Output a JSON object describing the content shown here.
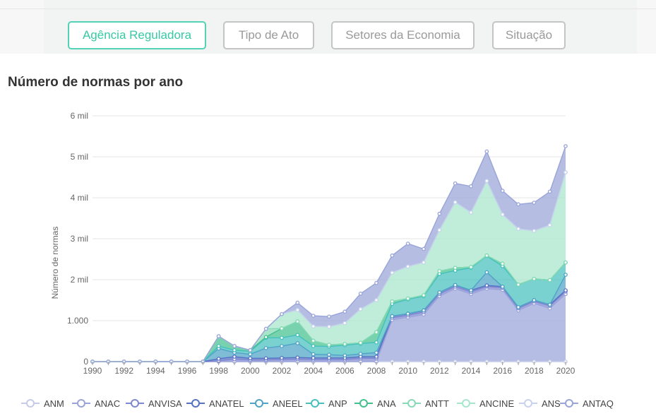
{
  "tabs": [
    {
      "label": "Agência Reguladora",
      "active": true
    },
    {
      "label": "Tipo de Ato",
      "active": false
    },
    {
      "label": "Setores da Economia",
      "active": false
    },
    {
      "label": "Situação",
      "active": false
    }
  ],
  "page_title": "Número de normas por ano",
  "chart_data": {
    "type": "area",
    "stacked": true,
    "title": "Número de normas por ano",
    "xlabel": "",
    "ylabel": "Número de normas",
    "x": [
      1990,
      1991,
      1992,
      1993,
      1994,
      1995,
      1996,
      1997,
      1998,
      1999,
      2000,
      2001,
      2002,
      2003,
      2004,
      2005,
      2006,
      2007,
      2008,
      2009,
      2010,
      2011,
      2012,
      2013,
      2014,
      2015,
      2016,
      2017,
      2018,
      2019,
      2020
    ],
    "x_tick_labels": [
      "1990",
      "1992",
      "1994",
      "1996",
      "1998",
      "2000",
      "2002",
      "2004",
      "2006",
      "2008",
      "2010",
      "2012",
      "2014",
      "2016",
      "2018",
      "2020"
    ],
    "ylim": [
      0,
      6000
    ],
    "y_ticks": [
      0,
      1000,
      2000,
      3000,
      4000,
      5000,
      6000
    ],
    "y_tick_labels": [
      "0",
      "1.000",
      "2 mil",
      "3 mil",
      "4 mil",
      "5 mil",
      "6 mil"
    ],
    "grid": true,
    "legend_position": "bottom",
    "series": [
      {
        "name": "ANM",
        "color": "#c5cbe9",
        "values": [
          0,
          0,
          0,
          0,
          0,
          0,
          0,
          0,
          0,
          0,
          0,
          0,
          0,
          0,
          0,
          0,
          0,
          0,
          0,
          0,
          0,
          0,
          0,
          0,
          0,
          0,
          0,
          0,
          0,
          0,
          0
        ]
      },
      {
        "name": "ANAC",
        "color": "#9aa4da",
        "values": [
          0,
          0,
          0,
          0,
          0,
          0,
          0,
          0,
          0,
          0,
          0,
          0,
          0,
          0,
          0,
          0,
          0,
          0,
          0,
          1020,
          1080,
          1150,
          1600,
          1780,
          1650,
          1780,
          1750,
          1250,
          1420,
          1300,
          1650
        ]
      },
      {
        "name": "ANVISA",
        "color": "#7f88d1",
        "values": [
          0,
          0,
          0,
          0,
          0,
          0,
          0,
          0,
          20,
          60,
          40,
          40,
          50,
          60,
          50,
          50,
          50,
          80,
          80,
          50,
          50,
          60,
          50,
          50,
          50,
          50,
          50,
          50,
          50,
          60,
          60
        ]
      },
      {
        "name": "ANATEL",
        "color": "#5572c3",
        "values": [
          0,
          0,
          0,
          0,
          0,
          0,
          0,
          0,
          50,
          60,
          40,
          40,
          40,
          40,
          40,
          40,
          40,
          40,
          40,
          40,
          40,
          40,
          40,
          40,
          40,
          30,
          30,
          30,
          30,
          30,
          30
        ]
      },
      {
        "name": "ANEEL",
        "color": "#4ea3c7",
        "values": [
          0,
          0,
          0,
          0,
          0,
          0,
          0,
          0,
          250,
          100,
          100,
          250,
          290,
          350,
          90,
          80,
          60,
          70,
          100,
          0,
          0,
          0,
          0,
          0,
          0,
          320,
          0,
          0,
          0,
          0,
          380
        ]
      },
      {
        "name": "ANP",
        "color": "#45c0bc",
        "values": [
          0,
          0,
          0,
          0,
          0,
          0,
          0,
          0,
          60,
          60,
          70,
          250,
          200,
          200,
          200,
          200,
          250,
          250,
          250,
          300,
          350,
          350,
          450,
          350,
          550,
          400,
          500,
          550,
          520,
          600,
          300
        ]
      },
      {
        "name": "ANA",
        "color": "#44c08e",
        "values": [
          0,
          0,
          0,
          0,
          0,
          0,
          0,
          0,
          240,
          100,
          30,
          20,
          230,
          330,
          130,
          40,
          30,
          20,
          250,
          60,
          20,
          20,
          70,
          70,
          20,
          10,
          60,
          0,
          0,
          0,
          0
        ]
      },
      {
        "name": "ANTT",
        "color": "#86dab5",
        "values": [
          0,
          0,
          0,
          0,
          0,
          0,
          0,
          0,
          0,
          0,
          0,
          200,
          0,
          0,
          0,
          0,
          0,
          0,
          0,
          0,
          0,
          0,
          0,
          0,
          0,
          0,
          0,
          0,
          0,
          0,
          0
        ]
      },
      {
        "name": "ANCINE",
        "color": "#a6e6cc",
        "values": [
          0,
          0,
          0,
          0,
          0,
          0,
          0,
          0,
          0,
          0,
          0,
          0,
          350,
          280,
          350,
          440,
          510,
          820,
          780,
          700,
          780,
          800,
          1000,
          1600,
          1330,
          1820,
          1200,
          1360,
          1170,
          1340,
          2200
        ]
      },
      {
        "name": "ANS",
        "color": "#c9d2ee",
        "values": [
          0,
          0,
          0,
          0,
          0,
          0,
          0,
          0,
          0,
          0,
          0,
          0,
          0,
          0,
          0,
          0,
          0,
          0,
          0,
          0,
          0,
          0,
          0,
          0,
          0,
          0,
          0,
          0,
          0,
          0,
          0
        ]
      },
      {
        "name": "ANTAQ",
        "color": "#99a4d8",
        "values": [
          0,
          0,
          0,
          0,
          0,
          0,
          0,
          0,
          0,
          0,
          0,
          0,
          0,
          180,
          260,
          250,
          280,
          380,
          420,
          420,
          560,
          330,
          400,
          460,
          640,
          720,
          580,
          600,
          690,
          820,
          640
        ]
      }
    ]
  }
}
